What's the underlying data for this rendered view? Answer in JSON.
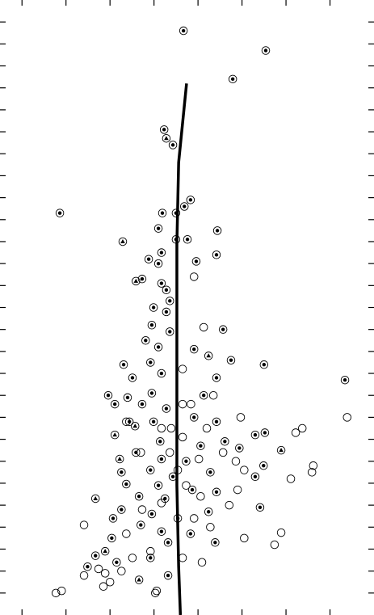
{
  "chart_data": {
    "type": "scatter",
    "xlim": [
      -0.5,
      8
    ],
    "ylim": [
      0,
      28
    ],
    "xticks": [
      0,
      1,
      2,
      3,
      4,
      5,
      6,
      7
    ],
    "yticks": [
      1,
      2,
      3,
      4,
      5,
      6,
      7,
      8,
      9,
      10,
      11,
      12,
      13,
      14,
      15,
      16,
      17,
      18,
      19,
      20,
      21,
      22,
      23,
      24,
      25,
      26,
      27
    ],
    "color": "#000000",
    "series": [
      {
        "marker": "open",
        "x": [
          3.91,
          4.13,
          3.65,
          4.35,
          3.84,
          4.97,
          6.37,
          6.22,
          4.2,
          3.65,
          3.17,
          2.37,
          6.62,
          6.59,
          6.11,
          5.05,
          4.86,
          4.57,
          4.02,
          3.54,
          3.73,
          4.9,
          4.71,
          4.06,
          3.91,
          4.28,
          5.05,
          5.89,
          5.74,
          4.09,
          3.65,
          2.92,
          2.51,
          2.26,
          1.89,
          1.74,
          2.0,
          1.85,
          1.41,
          3.06,
          3.03,
          2.37,
          2.73,
          3.17,
          2.7,
          3.36,
          3.65,
          3.39,
          7.39,
          0.77,
          0.9,
          1.41
        ],
        "y": [
          15.4,
          13.1,
          11.2,
          10.0,
          9.6,
          9.0,
          8.5,
          8.3,
          8.5,
          8.1,
          8.5,
          8.8,
          6.8,
          6.5,
          6.2,
          6.6,
          7.0,
          7.4,
          7.1,
          6.6,
          5.9,
          5.7,
          5.0,
          5.4,
          4.4,
          4.0,
          3.5,
          3.75,
          3.2,
          2.4,
          2.6,
          2.9,
          2.6,
          2.0,
          1.9,
          2.1,
          1.5,
          1.3,
          1.8,
          1.1,
          1.0,
          3.7,
          4.8,
          5.1,
          7.4,
          7.4,
          9.6,
          8.5,
          9.0,
          1.0,
          1.1,
          4.1
        ]
      },
      {
        "marker": "dot",
        "x": [
          3.67,
          5.54,
          4.79,
          0.86,
          7.34,
          3.23,
          3.43,
          3.83,
          3.69,
          3.19,
          3.5,
          3.1,
          4.44,
          3.5,
          3.76,
          3.17,
          4.42,
          2.88,
          3.1,
          3.96,
          2.73,
          3.17,
          3.28,
          3.36,
          2.99,
          3.28,
          2.95,
          3.36,
          4.57,
          2.81,
          3.1,
          3.91,
          2.92,
          2.31,
          4.75,
          5.5,
          2.51,
          3.17,
          4.42,
          1.96,
          2.4,
          2.95,
          4.13,
          2.11,
          2.73,
          3.28,
          3.91,
          4.42,
          2.44,
          2.99,
          5.3,
          5.52,
          3.14,
          4.06,
          4.61,
          2.59,
          3.17,
          3.73,
          4.94,
          2.26,
          2.92,
          3.43,
          4.28,
          5.49,
          2.37,
          3.1,
          3.87,
          5.3,
          2.66,
          3.25,
          4.42,
          5.41,
          2.26,
          2.95,
          3.54,
          4.24,
          2.07,
          2.7,
          3.17,
          3.83,
          2.04,
          3.32,
          4.39,
          1.67,
          1.49,
          2.15,
          2.92,
          3.32
        ],
        "y": [
          26.6,
          25.7,
          24.4,
          18.3,
          10.7,
          22.1,
          21.4,
          18.9,
          18.6,
          18.3,
          18.3,
          17.6,
          17.5,
          17.1,
          17.1,
          16.5,
          16.4,
          16.2,
          16.0,
          16.1,
          15.3,
          15.1,
          14.8,
          14.3,
          14.0,
          13.8,
          13.2,
          12.9,
          13.0,
          12.5,
          12.2,
          12.1,
          11.5,
          11.4,
          11.6,
          11.4,
          10.8,
          11.0,
          10.8,
          10.0,
          9.9,
          10.1,
          10.0,
          9.6,
          9.6,
          9.4,
          9.0,
          8.8,
          8.8,
          8.8,
          8.2,
          8.3,
          7.9,
          7.7,
          7.9,
          7.4,
          7.1,
          7.0,
          7.6,
          6.5,
          6.6,
          6.3,
          6.5,
          6.8,
          5.96,
          5.9,
          5.7,
          6.3,
          5.4,
          5.3,
          5.6,
          4.9,
          4.8,
          4.6,
          4.4,
          4.7,
          4.4,
          4.1,
          3.8,
          3.7,
          3.5,
          3.3,
          3.3,
          2.7,
          2.2,
          2.4,
          2.6,
          1.8
        ]
      },
      {
        "marker": "triangle",
        "x": [
          3.28,
          2.29,
          2.59,
          4.24,
          2.22,
          1.67,
          5.89,
          1.89,
          2.66,
          2.57,
          2.11
        ],
        "y": [
          21.7,
          17.0,
          15.2,
          11.8,
          7.1,
          5.3,
          7.5,
          2.9,
          1.6,
          8.6,
          8.2
        ]
      }
    ],
    "fit_line": {
      "x": [
        3.74,
        3.65,
        3.56,
        3.52,
        3.52,
        3.52,
        3.56,
        3.6
      ],
      "y": [
        24.2,
        22.4,
        20.6,
        16.9,
        11.4,
        5.9,
        2.2,
        0
      ]
    }
  }
}
